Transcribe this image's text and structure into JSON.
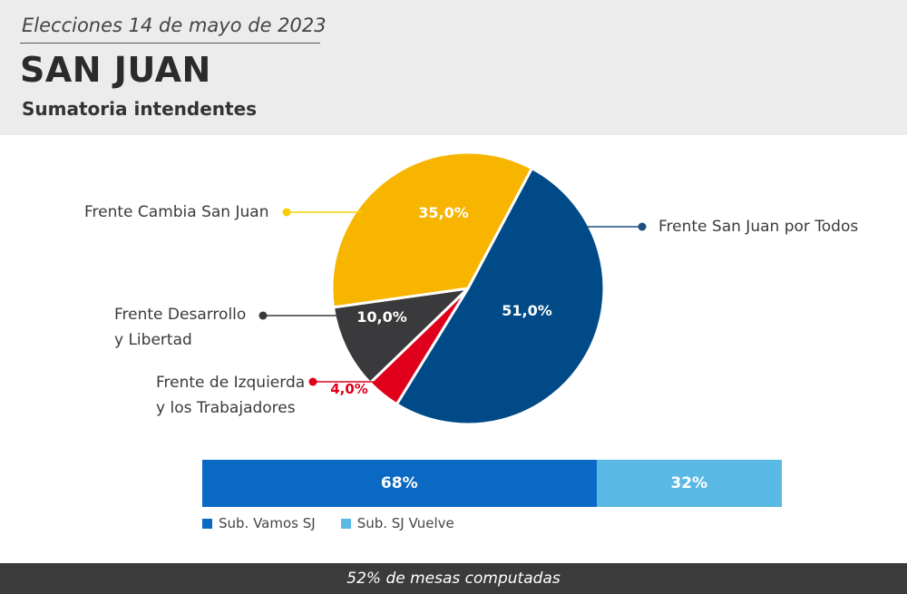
{
  "header": {
    "date_line": "Elecciones 14 de mayo de 2023",
    "title": "SAN JUAN",
    "subtitle": "Sumatoria intendentes"
  },
  "chart_data": [
    {
      "type": "pie",
      "title": "",
      "slices": [
        {
          "label": "Frente San Juan por Todos",
          "value": 51.0,
          "value_label": "51,0%",
          "color": "#004b87"
        },
        {
          "label": "Frente de Izquierda y los Trabajadores",
          "value": 4.0,
          "value_label": "4,0%",
          "color": "#e0001b"
        },
        {
          "label": "Frente Desarrollo y Libertad",
          "value": 10.0,
          "value_label": "10,0%",
          "color": "#3a3a3c"
        },
        {
          "label": "Frente Cambia San Juan",
          "value": 35.0,
          "value_label": "35,0%",
          "color": "#f7b500"
        }
      ]
    },
    {
      "type": "bar",
      "orientation": "horizontal-stacked",
      "series": [
        {
          "name": "Sub. Vamos SJ",
          "value": 68,
          "value_label": "68%",
          "color": "#0a6ac3"
        },
        {
          "name": "Sub. SJ Vuelve",
          "value": 32,
          "value_label": "32%",
          "color": "#5ab8e4"
        }
      ]
    }
  ],
  "labels": {
    "frente_sj_todos": "Frente San Juan por Todos",
    "frente_cambia": "Frente Cambia San Juan",
    "frente_desarrollo": [
      "Frente Desarrollo",
      "y Libertad"
    ],
    "frente_izquierda": [
      "Frente de Izquierda",
      "y los Trabajadores"
    ]
  },
  "footer": {
    "text": "52% de mesas computadas"
  }
}
